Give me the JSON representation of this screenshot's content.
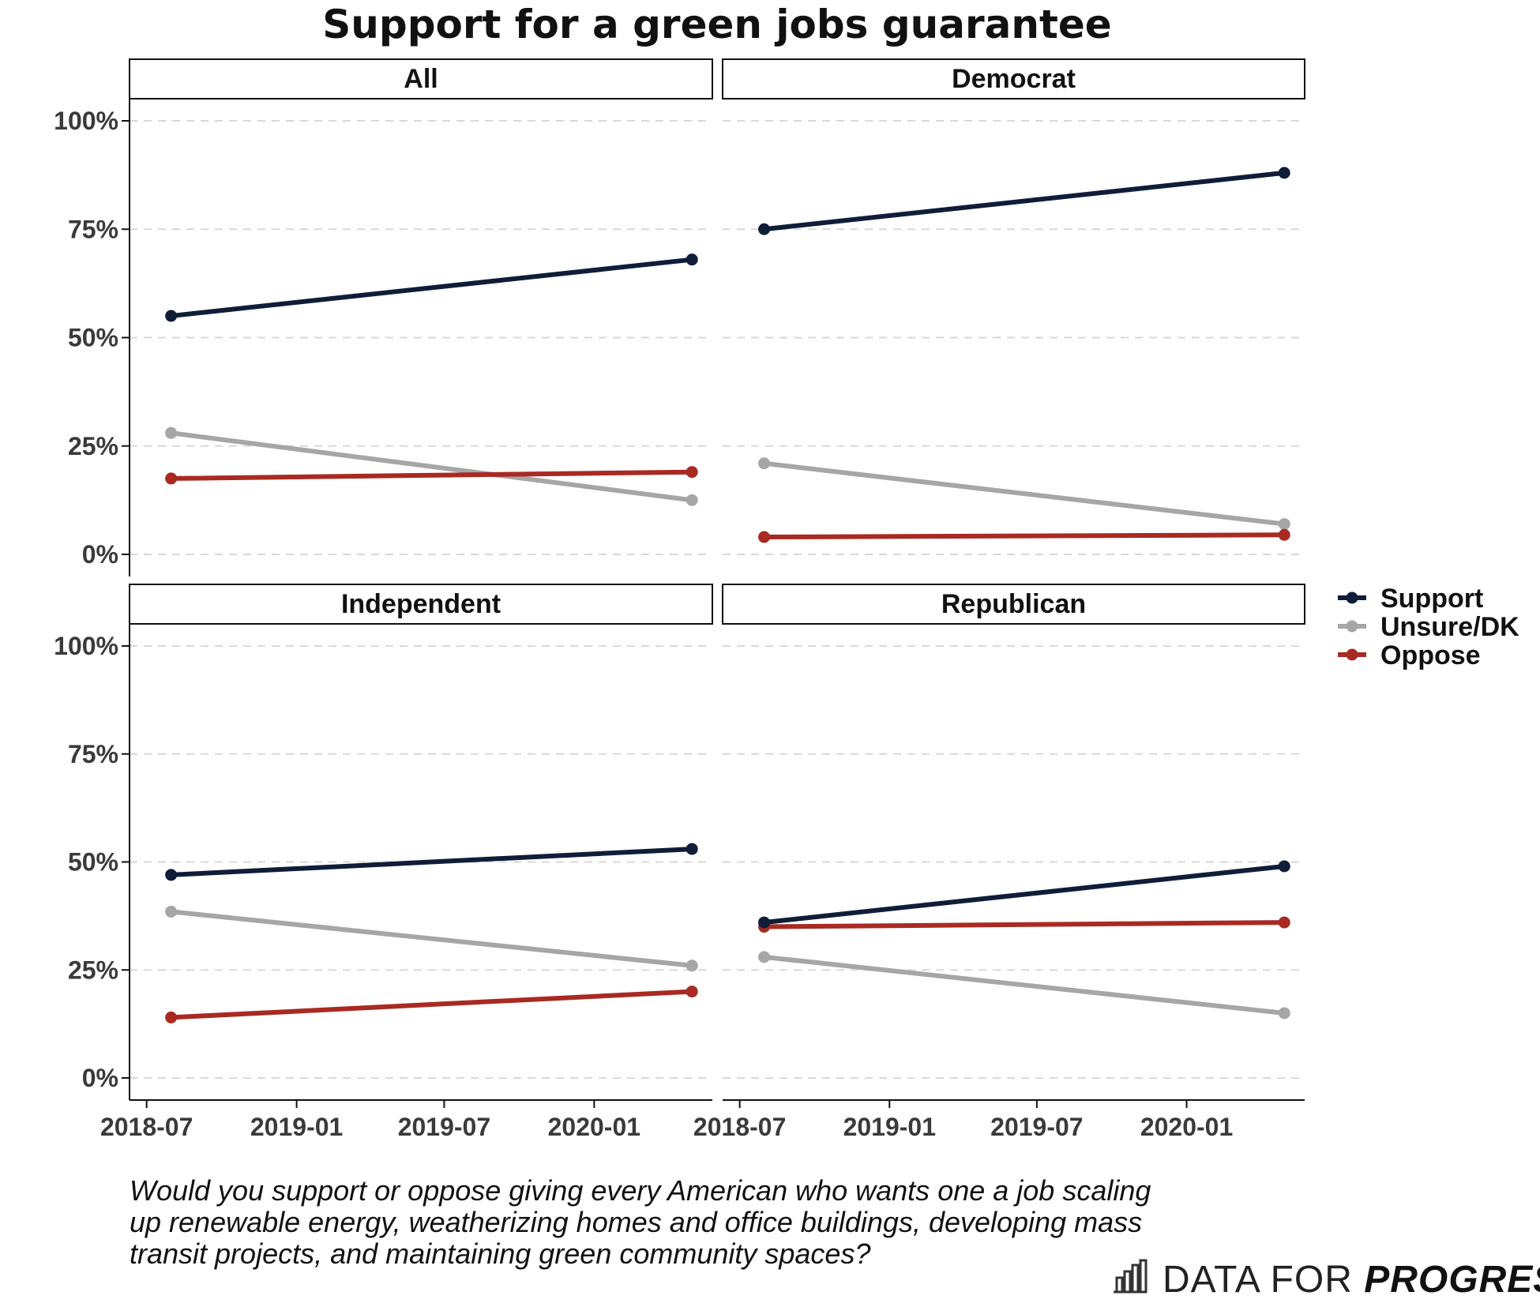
{
  "chart_data": {
    "type": "line",
    "title": "Support for a green jobs guarantee",
    "x_ticks": [
      "2018-07",
      "2019-01",
      "2019-07",
      "2020-01"
    ],
    "y_ticks": [
      "0%",
      "25%",
      "50%",
      "75%",
      "100%"
    ],
    "x": [
      "2018-07-31",
      "2020-04-30"
    ],
    "ylim": [
      0,
      100
    ],
    "legend": [
      {
        "name": "Support",
        "color": "#0f1d38"
      },
      {
        "name": "Unsure/DK",
        "color": "#a6a6a6"
      },
      {
        "name": "Oppose",
        "color": "#a82a22"
      }
    ],
    "panels": [
      {
        "name": "All",
        "series": [
          {
            "name": "Support",
            "values": [
              55,
              68
            ]
          },
          {
            "name": "Unsure/DK",
            "values": [
              28,
              12.5
            ]
          },
          {
            "name": "Oppose",
            "values": [
              17.5,
              19
            ]
          }
        ]
      },
      {
        "name": "Democrat",
        "series": [
          {
            "name": "Support",
            "values": [
              75,
              88
            ]
          },
          {
            "name": "Unsure/DK",
            "values": [
              21,
              7
            ]
          },
          {
            "name": "Oppose",
            "values": [
              4,
              4.5
            ]
          }
        ]
      },
      {
        "name": "Independent",
        "series": [
          {
            "name": "Support",
            "values": [
              47,
              53
            ]
          },
          {
            "name": "Unsure/DK",
            "values": [
              38.5,
              26
            ]
          },
          {
            "name": "Oppose",
            "values": [
              14,
              20
            ]
          }
        ]
      },
      {
        "name": "Republican",
        "series": [
          {
            "name": "Support",
            "values": [
              36,
              49
            ]
          },
          {
            "name": "Unsure/DK",
            "values": [
              28,
              15
            ]
          },
          {
            "name": "Oppose",
            "values": [
              35,
              36
            ]
          }
        ]
      }
    ]
  },
  "caption_lines": [
    "Would you support or oppose giving every American who wants one a job scaling",
    "up renewable energy, weatherizing homes and office buildings, developing mass",
    "transit projects, and maintaining green community spaces?"
  ],
  "brand": {
    "part1": "DATA FOR ",
    "part2": "PROGRESS"
  }
}
